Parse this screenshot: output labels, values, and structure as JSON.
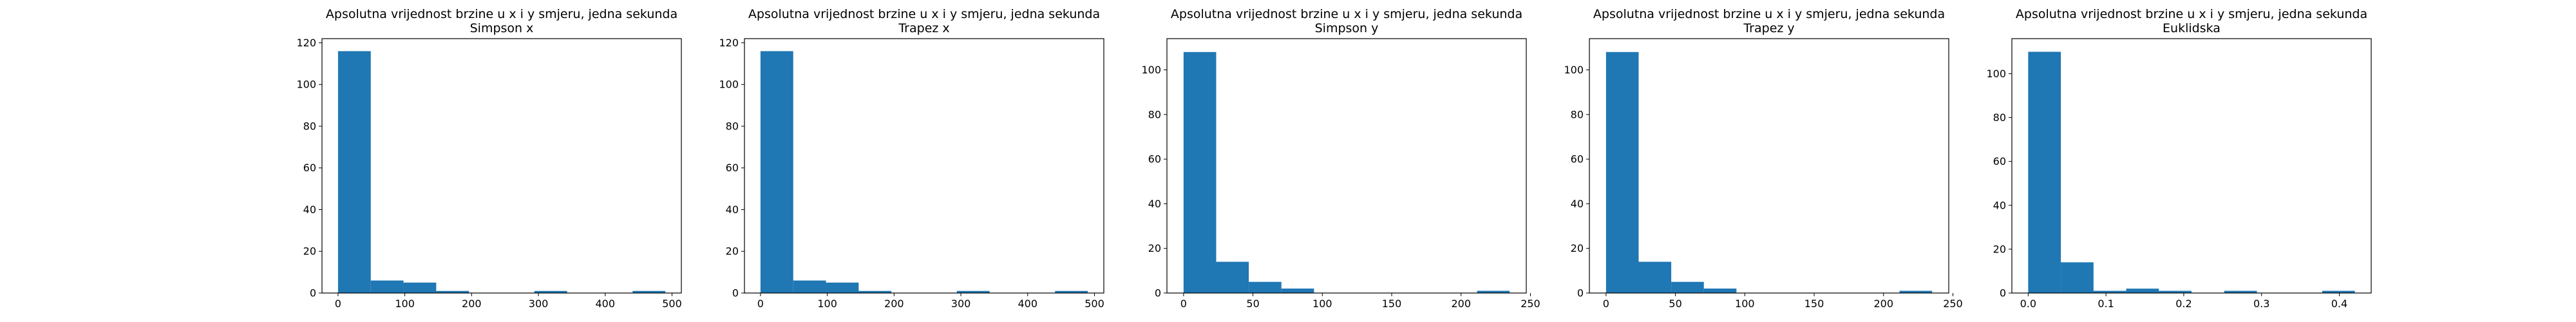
{
  "figure": {
    "background": "#ffffff",
    "bar_color": "#1f77b4"
  },
  "chart_data": [
    {
      "type": "bar",
      "title": "Apsolutna vrijednost brzine u x i y smjeru, jedna sekunda",
      "subtitle": "Simpson x",
      "bin_edges": [
        0,
        49,
        98,
        147,
        196,
        245,
        294,
        343,
        392,
        441,
        490
      ],
      "values": [
        116,
        6,
        5,
        1,
        0,
        0,
        1,
        0,
        0,
        1
      ],
      "xlim": [
        -24,
        514
      ],
      "ylim": [
        0,
        122
      ],
      "xticks": [
        0,
        100,
        200,
        300,
        400,
        500
      ],
      "yticks": [
        0,
        20,
        40,
        60,
        80,
        100,
        120
      ]
    },
    {
      "type": "bar",
      "title": "Apsolutna vrijednost brzine u x i y smjeru, jedna sekunda",
      "subtitle": "Trapez x",
      "bin_edges": [
        0,
        49,
        98,
        147,
        196,
        245,
        294,
        343,
        392,
        441,
        490
      ],
      "values": [
        116,
        6,
        5,
        1,
        0,
        0,
        1,
        0,
        0,
        1
      ],
      "xlim": [
        -24,
        514
      ],
      "ylim": [
        0,
        122
      ],
      "xticks": [
        0,
        100,
        200,
        300,
        400,
        500
      ],
      "yticks": [
        0,
        20,
        40,
        60,
        80,
        100,
        120
      ]
    },
    {
      "type": "bar",
      "title": "Apsolutna vrijednost brzine u x i y smjeru, jedna sekunda",
      "subtitle": "Simpson y",
      "bin_edges": [
        0,
        23.5,
        47,
        70.5,
        94,
        117.5,
        141,
        164.5,
        188,
        211.5,
        235
      ],
      "values": [
        108,
        14,
        5,
        2,
        0,
        0,
        0,
        0,
        0,
        1
      ],
      "xlim": [
        -12,
        247
      ],
      "ylim": [
        0,
        114
      ],
      "xticks": [
        0,
        50,
        100,
        150,
        200,
        250
      ],
      "yticks": [
        0,
        20,
        40,
        60,
        80,
        100
      ]
    },
    {
      "type": "bar",
      "title": "Apsolutna vrijednost brzine u x i y smjeru, jedna sekunda",
      "subtitle": "Trapez y",
      "bin_edges": [
        0,
        23.5,
        47,
        70.5,
        94,
        117.5,
        141,
        164.5,
        188,
        211.5,
        235
      ],
      "values": [
        108,
        14,
        5,
        2,
        0,
        0,
        0,
        0,
        0,
        1
      ],
      "xlim": [
        -12,
        247
      ],
      "ylim": [
        0,
        114
      ],
      "xticks": [
        0,
        50,
        100,
        150,
        200,
        250
      ],
      "yticks": [
        0,
        20,
        40,
        60,
        80,
        100
      ]
    },
    {
      "type": "bar",
      "title": "Apsolutna vrijednost brzine u x i y smjeru, jedna sekunda",
      "subtitle": "Euklidska",
      "bin_edges": [
        0,
        0.042,
        0.084,
        0.126,
        0.168,
        0.21,
        0.252,
        0.294,
        0.336,
        0.378,
        0.42
      ],
      "values": [
        110,
        14,
        1,
        2,
        1,
        0,
        1,
        0,
        0,
        1
      ],
      "xlim": [
        -0.021,
        0.441
      ],
      "ylim": [
        0,
        116
      ],
      "xticks": [
        "0.0",
        "0.1",
        "0.2",
        "0.3",
        "0.4"
      ],
      "yticks": [
        0,
        20,
        40,
        60,
        80,
        100
      ]
    }
  ]
}
